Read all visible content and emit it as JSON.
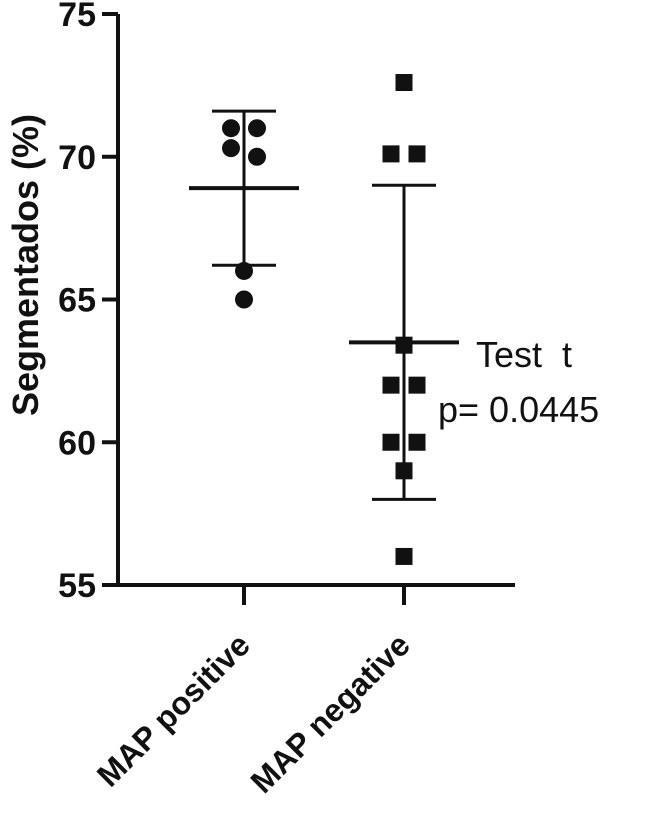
{
  "chart_data": {
    "type": "scatter",
    "ylabel": "Segmentados (%)",
    "xlabel": "",
    "ylim": [
      55,
      75
    ],
    "yticks": [
      55,
      60,
      65,
      70,
      75
    ],
    "categories": [
      "MAP positive",
      "MAP negative"
    ],
    "series": [
      {
        "category": "MAP positive",
        "marker": "circle",
        "points": [
          {
            "offset": -1,
            "y": 71.0
          },
          {
            "offset": 1,
            "y": 71.0
          },
          {
            "offset": -1,
            "y": 70.3
          },
          {
            "offset": 1,
            "y": 70.0
          },
          {
            "offset": 0,
            "y": 66.0
          },
          {
            "offset": 0,
            "y": 65.0
          }
        ],
        "mean": 68.9,
        "sd_upper": 71.6,
        "sd_lower": 66.2
      },
      {
        "category": "MAP negative",
        "marker": "square",
        "points": [
          {
            "offset": 0,
            "y": 72.6
          },
          {
            "offset": -1,
            "y": 70.1
          },
          {
            "offset": 1,
            "y": 70.1
          },
          {
            "offset": 0,
            "y": 63.4
          },
          {
            "offset": -1,
            "y": 62.0
          },
          {
            "offset": 1,
            "y": 62.0
          },
          {
            "offset": -1,
            "y": 60.0
          },
          {
            "offset": 1,
            "y": 60.0
          },
          {
            "offset": 0,
            "y": 59.0
          },
          {
            "offset": 0,
            "y": 56.0
          }
        ],
        "mean": 63.5,
        "sd_upper": 69.0,
        "sd_lower": 58.0
      }
    ],
    "annotation": {
      "line1": "Test  t",
      "line2": "p= 0.0445"
    },
    "grid": false,
    "color": "#111111"
  }
}
